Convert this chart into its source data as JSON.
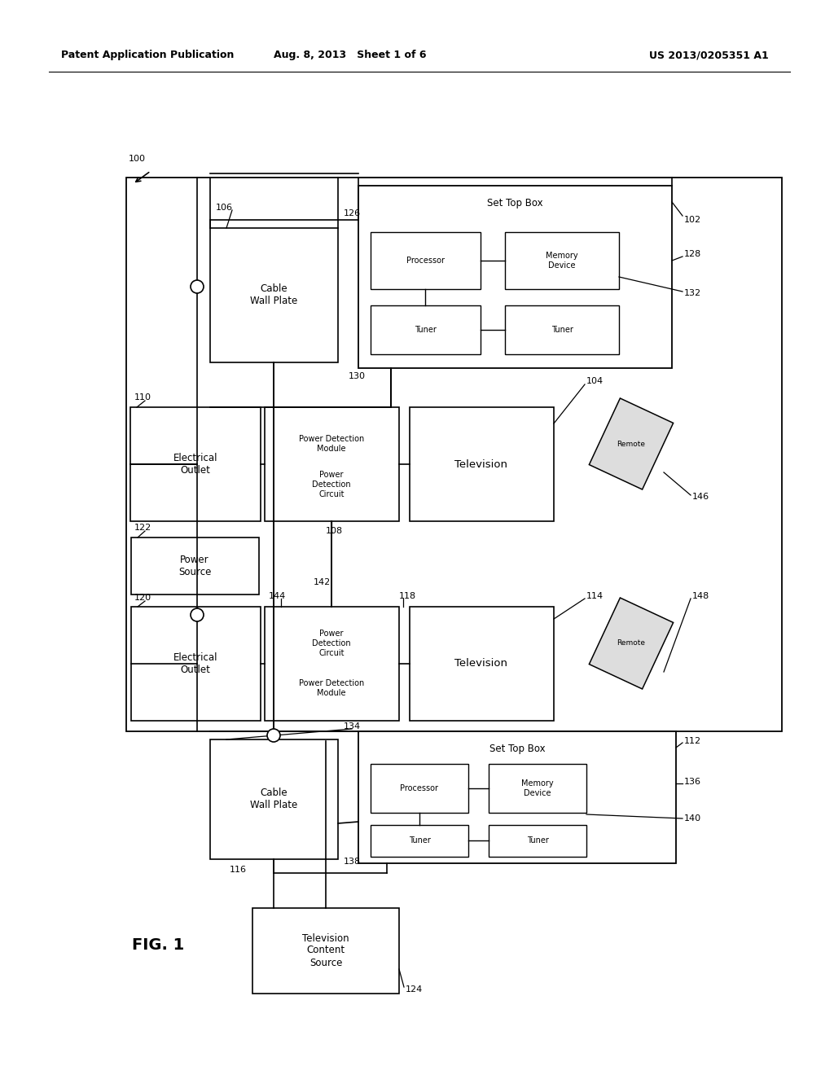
{
  "bg_color": "#ffffff",
  "header_left": "Patent Application Publication",
  "header_mid": "Aug. 8, 2013   Sheet 1 of 6",
  "header_right": "US 2013/0205351 A1",
  "fig_label": "FIG. 1"
}
